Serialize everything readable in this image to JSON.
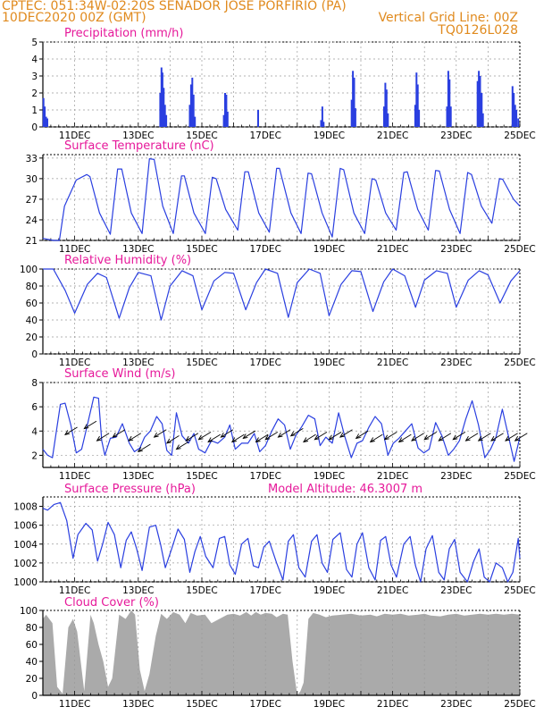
{
  "header": {
    "line1_left": "CPTEC:   051:34W-02:20S   SENADOR JOSE PORFIRIO (PA)",
    "line2_left": "10DEC2020 00Z (GMT)",
    "line2_right": "Vertical Grid Line: 00Z",
    "line3_right": "TQ0126L028"
  },
  "colors": {
    "header": "#e08a1e",
    "titles": "#e6199a",
    "lines": "#2a3fe0",
    "cloud": "#aaaaaa",
    "grid": "#9a9a9a"
  },
  "x_axis": {
    "labels": [
      "11DEC",
      "13DEC",
      "15DEC",
      "17DEC",
      "19DEC",
      "21DEC",
      "23DEC",
      "25DEC"
    ],
    "label_days": [
      11,
      13,
      15,
      17,
      19,
      21,
      23,
      25
    ]
  },
  "chart_data": [
    {
      "type": "bar",
      "title": "Precipitation (mm/h)",
      "ylim": [
        0,
        5
      ],
      "yticks": [
        "0",
        "1",
        "2",
        "3",
        "4",
        "5"
      ],
      "x_units": "day of Dec 2020",
      "points": [
        [
          10.02,
          1.7
        ],
        [
          10.06,
          1.2
        ],
        [
          10.1,
          0.6
        ],
        [
          10.14,
          0.5
        ],
        [
          13.69,
          2.0
        ],
        [
          13.73,
          3.5
        ],
        [
          13.76,
          3.2
        ],
        [
          13.8,
          2.3
        ],
        [
          13.84,
          1.3
        ],
        [
          13.88,
          0.7
        ],
        [
          14.62,
          1.3
        ],
        [
          14.66,
          2.5
        ],
        [
          14.7,
          2.9
        ],
        [
          14.74,
          1.9
        ],
        [
          14.78,
          0.6
        ],
        [
          15.69,
          0.7
        ],
        [
          15.73,
          2.0
        ],
        [
          15.77,
          1.9
        ],
        [
          15.81,
          0.9
        ],
        [
          16.77,
          1.0
        ],
        [
          18.75,
          0.4
        ],
        [
          18.79,
          1.2
        ],
        [
          18.83,
          0.3
        ],
        [
          19.71,
          1.6
        ],
        [
          19.75,
          3.3
        ],
        [
          19.79,
          2.9
        ],
        [
          19.83,
          1.1
        ],
        [
          20.73,
          1.2
        ],
        [
          20.77,
          2.6
        ],
        [
          20.81,
          2.2
        ],
        [
          20.85,
          0.8
        ],
        [
          21.71,
          1.3
        ],
        [
          21.75,
          3.2
        ],
        [
          21.79,
          2.5
        ],
        [
          21.83,
          1.0
        ],
        [
          22.71,
          1.2
        ],
        [
          22.75,
          3.3
        ],
        [
          22.79,
          2.8
        ],
        [
          22.83,
          1.2
        ],
        [
          23.67,
          2.7
        ],
        [
          23.71,
          3.3
        ],
        [
          23.75,
          3.0
        ],
        [
          23.8,
          2.0
        ],
        [
          23.84,
          0.8
        ],
        [
          24.77,
          2.4
        ],
        [
          24.81,
          2.0
        ],
        [
          24.85,
          1.3
        ],
        [
          24.89,
          1.0
        ],
        [
          24.95,
          0.5
        ]
      ]
    },
    {
      "type": "line",
      "title": "Surface Temperature (nC)",
      "ylim": [
        21,
        33.5
      ],
      "yticks": [
        "21",
        "24",
        "27",
        "30",
        "33"
      ],
      "x": [
        10.0,
        10.33,
        10.52,
        10.68,
        11.05,
        11.38,
        11.48,
        11.78,
        12.12,
        12.35,
        12.48,
        12.78,
        13.12,
        13.35,
        13.5,
        13.77,
        14.1,
        14.36,
        14.45,
        14.75,
        15.11,
        15.33,
        15.45,
        15.75,
        16.13,
        16.35,
        16.46,
        16.79,
        17.12,
        17.35,
        17.44,
        17.8,
        18.12,
        18.34,
        18.45,
        18.78,
        19.1,
        19.35,
        19.46,
        19.78,
        20.12,
        20.35,
        20.47,
        20.78,
        21.11,
        21.35,
        21.46,
        21.79,
        22.12,
        22.35,
        22.47,
        22.79,
        23.12,
        23.36,
        23.48,
        23.79,
        24.12,
        24.36,
        24.46,
        24.8,
        25.0
      ],
      "series": [
        {
          "values": [
            21.3,
            21.0,
            21.0,
            26.0,
            29.8,
            30.6,
            30.3,
            25.0,
            21.9,
            31.4,
            31.4,
            25.0,
            22.0,
            32.9,
            32.8,
            26.0,
            22.0,
            30.4,
            30.4,
            25.0,
            22.0,
            30.2,
            30.0,
            25.5,
            22.5,
            31.0,
            31.0,
            25.0,
            22.2,
            31.5,
            31.5,
            25.0,
            22.0,
            30.8,
            30.7,
            25.0,
            21.5,
            31.5,
            31.3,
            25.0,
            22.0,
            30.0,
            29.8,
            25.0,
            22.5,
            30.9,
            31.0,
            25.5,
            22.5,
            31.2,
            31.1,
            25.5,
            22.0,
            30.9,
            30.6,
            26.0,
            23.5,
            30.0,
            29.9,
            27.0,
            26.0
          ]
        }
      ]
    },
    {
      "type": "line",
      "title": "Relative Humidity (%)",
      "ylim": [
        0,
        100
      ],
      "yticks": [
        "0",
        "20",
        "40",
        "60",
        "80",
        "100"
      ],
      "x": [
        10.0,
        10.33,
        10.7,
        11.0,
        11.4,
        11.72,
        12.0,
        12.4,
        12.72,
        13.0,
        13.4,
        13.72,
        14.0,
        14.38,
        14.72,
        15.0,
        15.38,
        15.72,
        16.0,
        16.38,
        16.72,
        17.0,
        17.38,
        17.72,
        18.0,
        18.38,
        18.72,
        19.0,
        19.38,
        19.72,
        20.0,
        20.38,
        20.72,
        21.0,
        21.38,
        21.72,
        22.0,
        22.38,
        22.72,
        23.0,
        23.38,
        23.72,
        24.0,
        24.38,
        24.72,
        25.0
      ],
      "series": [
        {
          "values": [
            100,
            100,
            75,
            48,
            82,
            95,
            90,
            42,
            78,
            96,
            92,
            40,
            80,
            98,
            92,
            52,
            86,
            96,
            95,
            52,
            84,
            100,
            95,
            43,
            84,
            100,
            95,
            45,
            82,
            98,
            97,
            50,
            85,
            100,
            92,
            55,
            87,
            98,
            95,
            55,
            87,
            98,
            93,
            60,
            86,
            98
          ]
        }
      ]
    },
    {
      "type": "line",
      "title": "Surface Wind (m/s)",
      "ylim": [
        1,
        8
      ],
      "yticks": [
        "2",
        "4",
        "6",
        "8"
      ],
      "x": [
        10.0,
        10.15,
        10.3,
        10.55,
        10.7,
        10.88,
        11.05,
        11.22,
        11.4,
        11.6,
        11.75,
        11.85,
        11.95,
        12.12,
        12.3,
        12.5,
        12.72,
        12.88,
        13.05,
        13.2,
        13.38,
        13.58,
        13.75,
        13.9,
        14.05,
        14.2,
        14.38,
        14.58,
        14.75,
        14.9,
        15.1,
        15.3,
        15.5,
        15.72,
        15.88,
        16.05,
        16.25,
        16.45,
        16.65,
        16.82,
        17.0,
        17.2,
        17.4,
        17.6,
        17.78,
        17.95,
        18.15,
        18.35,
        18.55,
        18.72,
        18.9,
        19.1,
        19.3,
        19.5,
        19.7,
        19.88,
        20.05,
        20.25,
        20.45,
        20.65,
        20.85,
        21.02,
        21.2,
        21.4,
        21.6,
        21.8,
        21.98,
        22.15,
        22.35,
        22.55,
        22.75,
        22.92,
        23.1,
        23.3,
        23.5,
        23.7,
        23.9,
        24.08,
        24.25,
        24.45,
        24.65,
        24.82,
        25.0
      ],
      "series": [
        {
          "values": [
            2.5,
            2.0,
            1.8,
            6.2,
            6.3,
            4.5,
            2.2,
            2.5,
            4.5,
            6.8,
            6.7,
            3.2,
            2.0,
            3.4,
            3.5,
            4.6,
            3.0,
            2.3,
            2.6,
            3.5,
            4.0,
            5.2,
            4.6,
            2.4,
            2.0,
            5.5,
            3.6,
            3.0,
            3.8,
            2.5,
            2.2,
            3.2,
            3.0,
            3.5,
            4.5,
            2.5,
            3.0,
            3.0,
            3.8,
            2.3,
            2.8,
            4.0,
            5.0,
            4.5,
            2.5,
            3.6,
            4.4,
            5.3,
            5.0,
            2.8,
            3.5,
            3.0,
            5.5,
            3.5,
            1.8,
            3.0,
            3.2,
            4.3,
            5.2,
            4.6,
            2.0,
            3.0,
            3.4,
            4.0,
            4.6,
            2.6,
            2.2,
            2.5,
            4.7,
            3.6,
            2.0,
            2.5,
            3.2,
            5.0,
            6.5,
            4.5,
            1.8,
            2.5,
            3.5,
            5.8,
            3.5,
            1.5,
            3.5
          ]
        }
      ],
      "wind_arrows": [
        {
          "x": 10.7,
          "y": 3.7
        },
        {
          "x": 11.3,
          "y": 4.2
        },
        {
          "x": 11.7,
          "y": 3.2
        },
        {
          "x": 12.2,
          "y": 3.5
        },
        {
          "x": 12.7,
          "y": 3.2
        },
        {
          "x": 13.0,
          "y": 2.3
        },
        {
          "x": 13.5,
          "y": 3.5
        },
        {
          "x": 13.9,
          "y": 3.0
        },
        {
          "x": 14.2,
          "y": 2.5
        },
        {
          "x": 14.5,
          "y": 3.2
        },
        {
          "x": 14.9,
          "y": 3.3
        },
        {
          "x": 15.2,
          "y": 3.1
        },
        {
          "x": 15.6,
          "y": 3.5
        },
        {
          "x": 15.95,
          "y": 3.1
        },
        {
          "x": 16.3,
          "y": 3.4
        },
        {
          "x": 16.7,
          "y": 3.1
        },
        {
          "x": 17.0,
          "y": 3.3
        },
        {
          "x": 17.4,
          "y": 3.5
        },
        {
          "x": 17.8,
          "y": 3.6
        },
        {
          "x": 18.2,
          "y": 3.1
        },
        {
          "x": 18.55,
          "y": 3.3
        },
        {
          "x": 19.0,
          "y": 3.3
        },
        {
          "x": 19.35,
          "y": 3.5
        },
        {
          "x": 19.85,
          "y": 3.4
        },
        {
          "x": 20.3,
          "y": 3.1
        },
        {
          "x": 20.75,
          "y": 3.3
        },
        {
          "x": 21.2,
          "y": 3.1
        },
        {
          "x": 21.6,
          "y": 3.2
        },
        {
          "x": 22.0,
          "y": 3.3
        },
        {
          "x": 22.45,
          "y": 3.2
        },
        {
          "x": 22.9,
          "y": 3.3
        },
        {
          "x": 23.3,
          "y": 3.2
        },
        {
          "x": 23.7,
          "y": 3.2
        },
        {
          "x": 24.1,
          "y": 3.2
        },
        {
          "x": 24.55,
          "y": 3.2
        },
        {
          "x": 24.85,
          "y": 3.2
        }
      ]
    },
    {
      "type": "line",
      "title": "Surface Pressure (hPa)",
      "annotation": "Model Altitude: 46.3007 m",
      "ylim": [
        1000,
        1009
      ],
      "yticks": [
        "1000",
        "1002",
        "1004",
        "1006",
        "1008"
      ],
      "x": [
        10.0,
        10.15,
        10.35,
        10.55,
        10.75,
        10.95,
        11.1,
        11.35,
        11.55,
        11.72,
        11.88,
        12.05,
        12.25,
        12.45,
        12.62,
        12.78,
        12.95,
        13.12,
        13.35,
        13.55,
        13.7,
        13.85,
        14.05,
        14.25,
        14.45,
        14.62,
        14.78,
        14.95,
        15.12,
        15.35,
        15.55,
        15.72,
        15.88,
        16.05,
        16.25,
        16.45,
        16.62,
        16.78,
        16.95,
        17.12,
        17.35,
        17.55,
        17.72,
        17.88,
        18.05,
        18.25,
        18.45,
        18.62,
        18.78,
        18.95,
        19.12,
        19.35,
        19.55,
        19.72,
        19.88,
        20.05,
        20.25,
        20.45,
        20.62,
        20.78,
        20.95,
        21.12,
        21.35,
        21.55,
        21.72,
        21.88,
        22.05,
        22.25,
        22.45,
        22.62,
        22.78,
        22.95,
        23.12,
        23.35,
        23.55,
        23.72,
        23.88,
        24.05,
        24.25,
        24.45,
        24.62,
        24.78,
        24.95,
        25.0
      ],
      "series": [
        {
          "values": [
            1007.8,
            1007.6,
            1008.2,
            1008.4,
            1006.5,
            1002.5,
            1005.0,
            1006.2,
            1005.5,
            1002.2,
            1004.0,
            1006.3,
            1005.0,
            1001.5,
            1004.4,
            1005.3,
            1003.5,
            1001.2,
            1005.8,
            1006.0,
            1004.0,
            1001.5,
            1003.5,
            1005.6,
            1004.5,
            1001.0,
            1003.2,
            1004.8,
            1002.7,
            1001.5,
            1004.6,
            1004.8,
            1001.8,
            1000.8,
            1004.0,
            1004.6,
            1001.7,
            1001.5,
            1003.7,
            1004.3,
            1002.0,
            1000.2,
            1004.3,
            1005.0,
            1001.5,
            1000.5,
            1004.3,
            1005.0,
            1002.0,
            1001.0,
            1004.5,
            1005.2,
            1001.3,
            1000.5,
            1004.0,
            1005.2,
            1001.5,
            1000.2,
            1004.4,
            1004.8,
            1001.8,
            1000.5,
            1004.0,
            1004.8,
            1001.7,
            1000.0,
            1003.5,
            1004.9,
            1001.0,
            1000.2,
            1003.5,
            1004.5,
            1001.0,
            1000.0,
            1002.2,
            1003.5,
            1000.5,
            1000.0,
            1002.0,
            1001.5,
            1000.0,
            1001.0,
            1004.6,
            1002.5
          ]
        }
      ]
    },
    {
      "type": "area",
      "title": "Cloud Cover (%)",
      "ylim": [
        0,
        100
      ],
      "yticks": [
        "0",
        "20",
        "40",
        "60",
        "80",
        "100"
      ],
      "x": [
        10.0,
        10.1,
        10.3,
        10.45,
        10.62,
        10.8,
        10.95,
        11.08,
        11.3,
        11.5,
        11.6,
        11.75,
        11.9,
        12.05,
        12.18,
        12.4,
        12.6,
        12.78,
        12.9,
        13.05,
        13.2,
        13.35,
        13.55,
        13.72,
        13.9,
        14.1,
        14.3,
        14.48,
        14.65,
        14.85,
        15.1,
        15.3,
        15.55,
        15.8,
        16.0,
        16.2,
        16.4,
        16.55,
        16.7,
        16.85,
        17.0,
        17.2,
        17.35,
        17.55,
        17.7,
        17.85,
        18.0,
        18.1,
        18.2,
        18.35,
        18.5,
        18.7,
        18.9,
        19.1,
        19.4,
        19.7,
        20.0,
        20.3,
        20.5,
        20.75,
        21.0,
        21.25,
        21.5,
        21.8,
        22.0,
        22.2,
        22.5,
        22.75,
        23.0,
        23.25,
        23.5,
        23.75,
        24.0,
        24.25,
        24.5,
        24.75,
        25.0
      ],
      "series": [
        {
          "values": [
            90,
            95,
            85,
            10,
            2,
            80,
            90,
            75,
            5,
            95,
            85,
            60,
            40,
            10,
            20,
            95,
            90,
            100,
            95,
            30,
            5,
            25,
            70,
            96,
            90,
            98,
            95,
            85,
            97,
            94,
            95,
            85,
            90,
            95,
            96,
            94,
            98,
            94,
            98,
            95,
            97,
            96,
            92,
            96,
            95,
            40,
            0,
            5,
            15,
            90,
            97,
            95,
            92,
            94,
            95,
            96,
            94,
            95,
            93,
            96,
            95,
            96,
            94,
            95,
            96,
            94,
            93,
            95,
            96,
            94,
            95,
            96,
            95,
            96,
            95,
            96,
            95
          ]
        }
      ]
    }
  ]
}
